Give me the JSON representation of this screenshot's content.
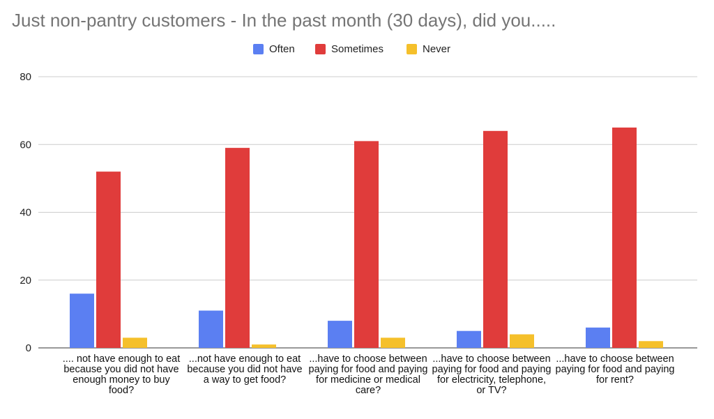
{
  "chart_data": {
    "type": "bar",
    "title": "Just non-pantry customers - In the past month (30 days), did you.....",
    "categories": [
      ".... not have enough to eat because you did not have enough money to buy food?",
      "...not have enough to eat because you did not have a way to get food?",
      "...have to choose between paying for food and paying for medicine or medical care?",
      "...have to choose between paying for food and paying for electricity, telephone, or TV?",
      "...have to choose between paying for food and paying for rent?"
    ],
    "series": [
      {
        "name": "Often",
        "color": "#5b7ff2",
        "values": [
          16,
          11,
          8,
          5,
          6
        ]
      },
      {
        "name": "Sometimes",
        "color": "#e03c3b",
        "values": [
          52,
          59,
          61,
          64,
          65
        ]
      },
      {
        "name": "Never",
        "color": "#f5c02b",
        "values": [
          3,
          1,
          3,
          4,
          2
        ]
      }
    ],
    "ylim": [
      0,
      80
    ],
    "yticks": [
      0,
      20,
      40,
      60,
      80
    ],
    "xlabel": "",
    "ylabel": "",
    "grid": true,
    "legend_position": "top-center"
  }
}
